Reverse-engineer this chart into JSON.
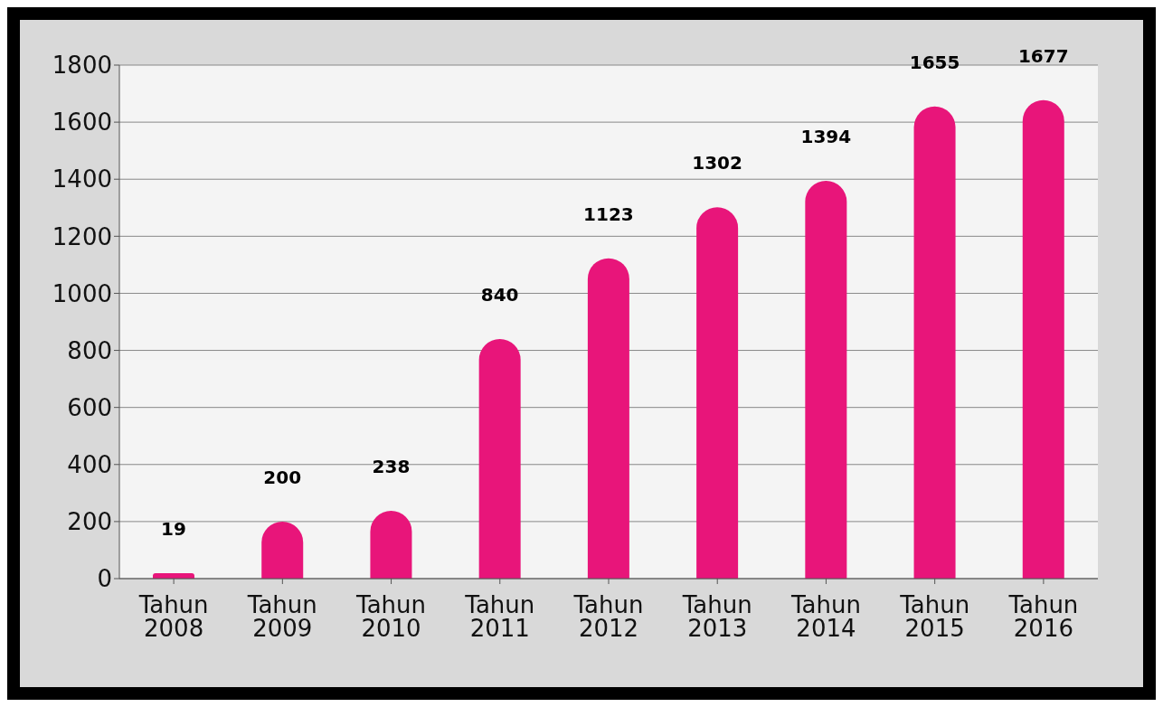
{
  "chart_data": {
    "type": "bar",
    "categories": [
      "Tahun 2008",
      "Tahun 2009",
      "Tahun 2010",
      "Tahun 2011",
      "Tahun 2012",
      "Tahun 2013",
      "Tahun 2014",
      "Tahun 2015",
      "Tahun 2016"
    ],
    "values": [
      19,
      200,
      238,
      840,
      1123,
      1302,
      1394,
      1655,
      1677
    ],
    "color": "#e8157a",
    "ylim": [
      0,
      1800
    ],
    "yticks": [
      0,
      200,
      400,
      600,
      800,
      1000,
      1200,
      1400,
      1600,
      1800
    ],
    "grid": "y",
    "data_labels": true
  }
}
